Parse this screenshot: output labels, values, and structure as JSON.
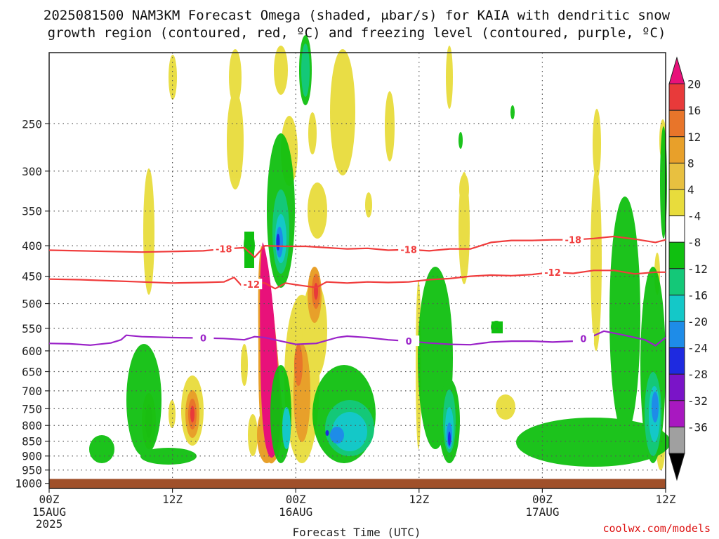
{
  "chart_data": {
    "type": "heatmap",
    "title_line1": "2025081500 NAM3KM Forecast Omega (shaded, μbar/s) for KAIA with dendritic snow",
    "title_line2": "growth region (contoured, red, ºC) and freezing level (contoured, purple, ºC)",
    "xlabel": "Forecast Time (UTC)",
    "ylabel": "",
    "credit": "coolwx.com/models",
    "x_hours_range": [
      0,
      60
    ],
    "y_pressure_range": [
      1020,
      190
    ],
    "y_ticks": [
      250,
      300,
      350,
      400,
      450,
      500,
      550,
      600,
      650,
      700,
      750,
      800,
      850,
      900,
      950,
      1000
    ],
    "x_ticks": [
      {
        "hour": 0,
        "l1": "00Z",
        "l2": "15AUG",
        "l3": "2025"
      },
      {
        "hour": 12,
        "l1": "12Z",
        "l2": "",
        "l3": ""
      },
      {
        "hour": 24,
        "l1": "00Z",
        "l2": "16AUG",
        "l3": ""
      },
      {
        "hour": 36,
        "l1": "12Z",
        "l2": "",
        "l3": ""
      },
      {
        "hour": 48,
        "l1": "00Z",
        "l2": "17AUG",
        "l3": ""
      },
      {
        "hour": 60,
        "l1": "12Z",
        "l2": "",
        "l3": ""
      }
    ],
    "colorbar": {
      "labels": [
        "20",
        "16",
        "12",
        "8",
        "4",
        "-4",
        "-8",
        "-12",
        "-16",
        "-20",
        "-24",
        "-28",
        "-32",
        "-36"
      ],
      "colors": [
        "#e8117a",
        "#e83a3a",
        "#e8752a",
        "#e8a02a",
        "#e8c040",
        "#e8dc3c",
        "#ffffff",
        "#10c010",
        "#14c878",
        "#14c8c8",
        "#1e8ce8",
        "#1e2ae0",
        "#7a14c8",
        "#a818c0",
        "#a0a0a0",
        "#000000"
      ]
    },
    "series": [
      {
        "name": "-18",
        "color": "#f03c3c",
        "points": [
          [
            0,
            407
          ],
          [
            3,
            408
          ],
          [
            6,
            409
          ],
          [
            9,
            410
          ],
          [
            12,
            409
          ],
          [
            15,
            408
          ],
          [
            17,
            405
          ],
          [
            19,
            403
          ],
          [
            20,
            418
          ],
          [
            21,
            400
          ],
          [
            23,
            401
          ],
          [
            25,
            401
          ],
          [
            27,
            403
          ],
          [
            29,
            405
          ],
          [
            31,
            404
          ],
          [
            33,
            407
          ],
          [
            35,
            406
          ],
          [
            37,
            408
          ],
          [
            39,
            405
          ],
          [
            41,
            405
          ],
          [
            43,
            395
          ],
          [
            45,
            392
          ],
          [
            47,
            392
          ],
          [
            49,
            391
          ],
          [
            51,
            391
          ],
          [
            53,
            389
          ],
          [
            55,
            386
          ],
          [
            57,
            390
          ],
          [
            59,
            395
          ],
          [
            60,
            391
          ]
        ],
        "labels_at_hours": [
          17,
          35,
          51
        ]
      },
      {
        "name": "-12",
        "color": "#f03c3c",
        "points": [
          [
            0,
            455
          ],
          [
            3,
            456
          ],
          [
            6,
            458
          ],
          [
            9,
            460
          ],
          [
            12,
            462
          ],
          [
            15,
            461
          ],
          [
            17,
            460
          ],
          [
            18,
            452
          ],
          [
            19,
            472
          ],
          [
            20,
            461
          ],
          [
            21,
            462
          ],
          [
            22,
            472
          ],
          [
            23,
            462
          ],
          [
            24,
            465
          ],
          [
            26,
            470
          ],
          [
            27,
            460
          ],
          [
            29,
            462
          ],
          [
            31,
            460
          ],
          [
            33,
            461
          ],
          [
            35,
            460
          ],
          [
            37,
            456
          ],
          [
            39,
            454
          ],
          [
            41,
            450
          ],
          [
            43,
            448
          ],
          [
            45,
            449
          ],
          [
            47,
            447
          ],
          [
            49,
            443
          ],
          [
            51,
            445
          ],
          [
            53,
            440
          ],
          [
            55,
            440
          ],
          [
            57,
            446
          ],
          [
            59,
            443
          ],
          [
            60,
            443
          ]
        ],
        "labels_at_hours": [
          19.7,
          49
        ]
      },
      {
        "name": "0",
        "color": "#9a22c8",
        "points": [
          [
            0,
            583
          ],
          [
            2,
            584
          ],
          [
            4,
            587
          ],
          [
            6,
            582
          ],
          [
            7,
            575
          ],
          [
            7.5,
            565
          ],
          [
            9,
            568
          ],
          [
            12,
            570
          ],
          [
            15,
            571
          ],
          [
            17,
            572
          ],
          [
            19,
            575
          ],
          [
            20,
            568
          ],
          [
            21,
            570
          ],
          [
            23,
            580
          ],
          [
            24,
            585
          ],
          [
            26,
            583
          ],
          [
            28,
            570
          ],
          [
            29,
            567
          ],
          [
            31,
            570
          ],
          [
            33,
            575
          ],
          [
            35,
            578
          ],
          [
            37,
            582
          ],
          [
            39,
            585
          ],
          [
            41,
            586
          ],
          [
            43,
            580
          ],
          [
            45,
            578
          ],
          [
            47,
            578
          ],
          [
            49,
            580
          ],
          [
            51,
            578
          ],
          [
            53,
            566
          ],
          [
            54,
            556
          ],
          [
            56,
            565
          ],
          [
            58,
            575
          ],
          [
            59,
            588
          ],
          [
            60,
            570
          ]
        ],
        "labels_at_hours": [
          15,
          35,
          52
        ]
      }
    ]
  }
}
